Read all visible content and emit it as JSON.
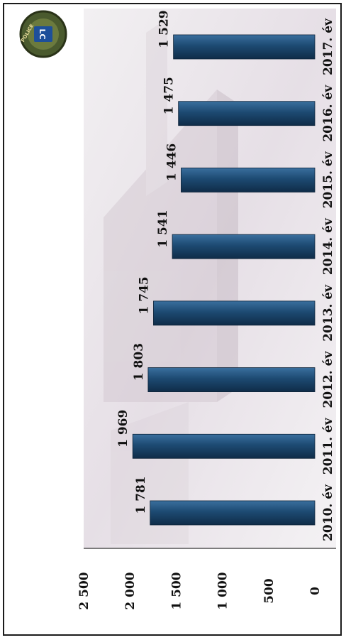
{
  "chart_data": {
    "type": "bar",
    "orientation": "horizontal",
    "title": "",
    "xlabel": "",
    "ylabel": "",
    "categories": [
      "2010. év",
      "2011. év",
      "2012. év",
      "2013. év",
      "2014. év",
      "2015. év",
      "2016. év",
      "2017. év"
    ],
    "values": [
      1781,
      1969,
      1803,
      1745,
      1541,
      1446,
      1475,
      1529
    ],
    "value_labels": [
      "1 781",
      "1 969",
      "1 803",
      "1 745",
      "1 541",
      "1 446",
      "1 475",
      "1 529"
    ],
    "axis_ticks": [
      "0",
      "500",
      "1 000",
      "1 500",
      "2 000",
      "2 500"
    ],
    "axis_range": [
      0,
      2500
    ],
    "grid": false,
    "legend": "none",
    "bar_color": "#1d4a72",
    "bar_highlight": "#3f77a6",
    "background_color": "#ece8ec",
    "logo": {
      "icon": "police-badge-icon",
      "text": "POLICE",
      "initials": "LC"
    }
  }
}
